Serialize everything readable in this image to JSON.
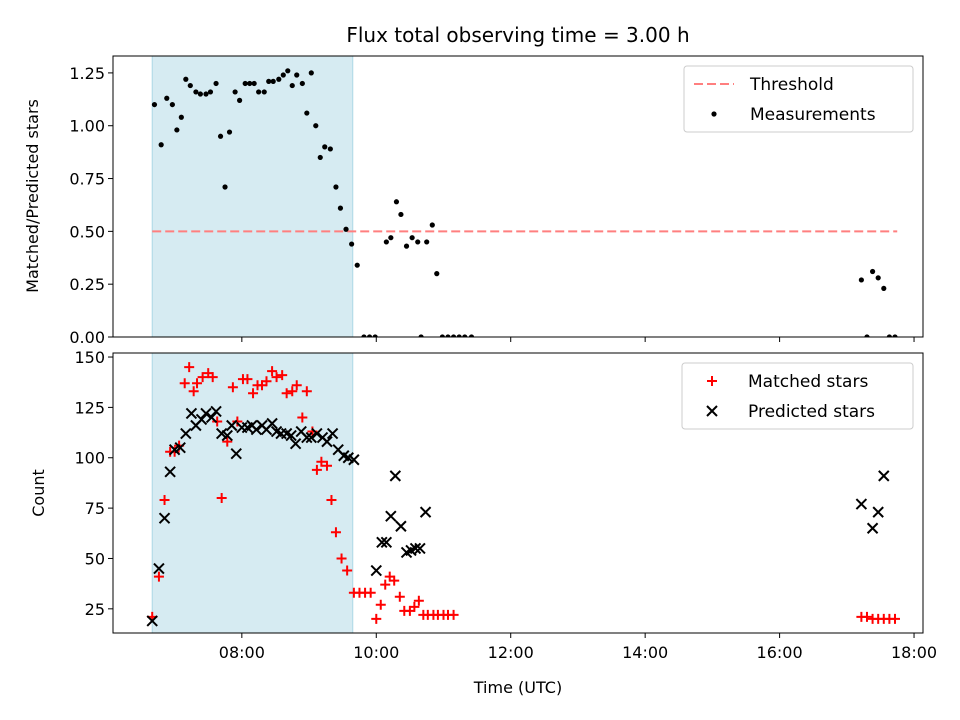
{
  "figure": {
    "title": "Flux total observing time = 3.00 h",
    "xlabel": "Time (UTC)"
  },
  "chart_data": [
    {
      "type": "scatter",
      "name": "ratio-panel",
      "ylabel": "Matched/Predicted stars",
      "xlim": [
        "06:05",
        "18:08"
      ],
      "ylim": [
        0,
        1.33
      ],
      "yticks": [
        "0.00",
        "0.25",
        "0.50",
        "0.75",
        "1.00",
        "1.25"
      ],
      "xtick_values": [
        "08:00",
        "10:00",
        "12:00",
        "14:00",
        "16:00",
        "18:00"
      ],
      "shaded_span": [
        "06:40",
        "09:39"
      ],
      "shade_color": "#add8e6",
      "threshold": {
        "label": "Threshold",
        "y": 0.5,
        "x": [
          "06:40",
          "17:45"
        ],
        "color": "#ff7f7f"
      },
      "series": [
        {
          "name": "Measurements",
          "color": "#000000",
          "marker": "dot",
          "points": [
            [
              "06:42",
              1.1
            ],
            [
              "06:48",
              0.91
            ],
            [
              "06:53",
              1.13
            ],
            [
              "06:58",
              1.1
            ],
            [
              "07:02",
              0.98
            ],
            [
              "07:06",
              1.04
            ],
            [
              "07:10",
              1.22
            ],
            [
              "07:14",
              1.19
            ],
            [
              "07:19",
              1.16
            ],
            [
              "07:23",
              1.15
            ],
            [
              "07:28",
              1.15
            ],
            [
              "07:32",
              1.16
            ],
            [
              "07:37",
              1.2
            ],
            [
              "07:41",
              0.95
            ],
            [
              "07:45",
              0.71
            ],
            [
              "07:49",
              0.97
            ],
            [
              "07:54",
              1.16
            ],
            [
              "07:58",
              1.12
            ],
            [
              "08:03",
              1.2
            ],
            [
              "08:07",
              1.2
            ],
            [
              "08:11",
              1.2
            ],
            [
              "08:15",
              1.16
            ],
            [
              "08:20",
              1.16
            ],
            [
              "08:24",
              1.21
            ],
            [
              "08:28",
              1.21
            ],
            [
              "08:33",
              1.22
            ],
            [
              "08:37",
              1.24
            ],
            [
              "08:41",
              1.26
            ],
            [
              "08:45",
              1.19
            ],
            [
              "08:49",
              1.24
            ],
            [
              "08:54",
              1.2
            ],
            [
              "08:58",
              1.06
            ],
            [
              "09:02",
              1.25
            ],
            [
              "09:06",
              1.0
            ],
            [
              "09:10",
              0.85
            ],
            [
              "09:14",
              0.9
            ],
            [
              "09:19",
              0.89
            ],
            [
              "09:24",
              0.71
            ],
            [
              "09:28",
              0.61
            ],
            [
              "09:33",
              0.51
            ],
            [
              "09:38",
              0.44
            ],
            [
              "09:43",
              0.34
            ],
            [
              "09:49",
              0.0
            ],
            [
              "09:54",
              0.0
            ],
            [
              "09:59",
              0.0
            ],
            [
              "10:09",
              0.45
            ],
            [
              "10:13",
              0.47
            ],
            [
              "10:18",
              0.64
            ],
            [
              "10:22",
              0.58
            ],
            [
              "10:27",
              0.43
            ],
            [
              "10:32",
              0.47
            ],
            [
              "10:37",
              0.45
            ],
            [
              "10:40",
              0.0
            ],
            [
              "10:45",
              0.45
            ],
            [
              "10:50",
              0.53
            ],
            [
              "10:54",
              0.3
            ],
            [
              "10:59",
              0.0
            ],
            [
              "11:04",
              0.0
            ],
            [
              "11:09",
              0.0
            ],
            [
              "11:14",
              0.0
            ],
            [
              "11:19",
              0.0
            ],
            [
              "11:25",
              0.0
            ],
            [
              "17:13",
              0.27
            ],
            [
              "17:18",
              0.0
            ],
            [
              "17:23",
              0.31
            ],
            [
              "17:28",
              0.28
            ],
            [
              "17:33",
              0.23
            ],
            [
              "17:38",
              0.0
            ],
            [
              "17:43",
              0.0
            ]
          ]
        }
      ],
      "legend": {
        "position": "top-right",
        "entries": [
          "Threshold",
          "Measurements"
        ]
      }
    },
    {
      "type": "scatter",
      "name": "count-panel",
      "ylabel": "Count",
      "xlim": [
        "06:05",
        "18:08"
      ],
      "ylim": [
        13,
        152
      ],
      "yticks": [
        "25",
        "50",
        "75",
        "100",
        "125",
        "150"
      ],
      "xticks": [
        "08:00",
        "10:00",
        "12:00",
        "14:00",
        "16:00",
        "18:00"
      ],
      "shaded_span": [
        "06:40",
        "09:39"
      ],
      "shade_color": "#add8e6",
      "series": [
        {
          "name": "Matched stars",
          "color": "#ff0000",
          "marker": "plus",
          "points": [
            [
              "06:40",
              21
            ],
            [
              "06:46",
              41
            ],
            [
              "06:51",
              79
            ],
            [
              "06:56",
              103
            ],
            [
              "07:00",
              103
            ],
            [
              "07:04",
              106
            ],
            [
              "07:09",
              137
            ],
            [
              "07:13",
              145
            ],
            [
              "07:17",
              133
            ],
            [
              "07:20",
              137
            ],
            [
              "07:25",
              140
            ],
            [
              "07:30",
              142
            ],
            [
              "07:34",
              140
            ],
            [
              "07:38",
              118
            ],
            [
              "07:42",
              80
            ],
            [
              "07:47",
              108
            ],
            [
              "07:52",
              135
            ],
            [
              "07:56",
              118
            ],
            [
              "08:01",
              139
            ],
            [
              "08:05",
              139
            ],
            [
              "08:10",
              132
            ],
            [
              "08:14",
              136
            ],
            [
              "08:18",
              136
            ],
            [
              "08:22",
              138
            ],
            [
              "08:27",
              143
            ],
            [
              "08:31",
              140
            ],
            [
              "08:36",
              141
            ],
            [
              "08:40",
              132
            ],
            [
              "08:45",
              133
            ],
            [
              "08:49",
              136
            ],
            [
              "08:54",
              120
            ],
            [
              "08:58",
              133
            ],
            [
              "09:03",
              113
            ],
            [
              "09:07",
              94
            ],
            [
              "09:11",
              98
            ],
            [
              "09:16",
              96
            ],
            [
              "09:20",
              79
            ],
            [
              "09:24",
              63
            ],
            [
              "09:29",
              50
            ],
            [
              "09:34",
              44
            ],
            [
              "09:40",
              33
            ],
            [
              "09:45",
              33
            ],
            [
              "09:50",
              33
            ],
            [
              "09:55",
              33
            ],
            [
              "10:00",
              20
            ],
            [
              "10:04",
              27
            ],
            [
              "10:08",
              37
            ],
            [
              "10:12",
              41
            ],
            [
              "10:16",
              39
            ],
            [
              "10:21",
              31
            ],
            [
              "10:25",
              24
            ],
            [
              "10:30",
              24
            ],
            [
              "10:34",
              26
            ],
            [
              "10:38",
              29
            ],
            [
              "10:42",
              22
            ],
            [
              "10:46",
              22
            ],
            [
              "10:51",
              22
            ],
            [
              "10:55",
              22
            ],
            [
              "11:00",
              22
            ],
            [
              "11:04",
              22
            ],
            [
              "11:09",
              22
            ],
            [
              "17:13",
              21
            ],
            [
              "17:18",
              21
            ],
            [
              "17:23",
              20
            ],
            [
              "17:28",
              20
            ],
            [
              "17:33",
              20
            ],
            [
              "17:38",
              20
            ],
            [
              "17:43",
              20
            ]
          ]
        },
        {
          "name": "Predicted stars",
          "color": "#000000",
          "marker": "x",
          "points": [
            [
              "06:40",
              19
            ],
            [
              "06:46",
              45
            ],
            [
              "06:51",
              70
            ],
            [
              "06:56",
              93
            ],
            [
              "07:00",
              104
            ],
            [
              "07:05",
              105
            ],
            [
              "07:10",
              112
            ],
            [
              "07:15",
              122
            ],
            [
              "07:19",
              116
            ],
            [
              "07:24",
              119
            ],
            [
              "07:28",
              122
            ],
            [
              "07:33",
              120
            ],
            [
              "07:37",
              123
            ],
            [
              "07:42",
              112
            ],
            [
              "07:47",
              111
            ],
            [
              "07:51",
              116
            ],
            [
              "07:55",
              102
            ],
            [
              "08:00",
              115
            ],
            [
              "08:05",
              115
            ],
            [
              "08:09",
              116
            ],
            [
              "08:13",
              114
            ],
            [
              "08:18",
              116
            ],
            [
              "08:22",
              114
            ],
            [
              "08:27",
              117
            ],
            [
              "08:31",
              113
            ],
            [
              "08:35",
              112
            ],
            [
              "08:40",
              112
            ],
            [
              "08:44",
              111
            ],
            [
              "08:48",
              107
            ],
            [
              "08:53",
              113
            ],
            [
              "08:58",
              110
            ],
            [
              "09:02",
              110
            ],
            [
              "09:07",
              112
            ],
            [
              "09:12",
              110
            ],
            [
              "09:16",
              108
            ],
            [
              "09:21",
              112
            ],
            [
              "09:26",
              104
            ],
            [
              "09:31",
              101
            ],
            [
              "09:35",
              100
            ],
            [
              "09:40",
              99
            ],
            [
              "10:00",
              44
            ],
            [
              "10:05",
              58
            ],
            [
              "10:09",
              58
            ],
            [
              "10:13",
              71
            ],
            [
              "10:17",
              91
            ],
            [
              "10:22",
              66
            ],
            [
              "10:27",
              53
            ],
            [
              "10:31",
              54
            ],
            [
              "10:35",
              55
            ],
            [
              "10:39",
              55
            ],
            [
              "10:44",
              73
            ],
            [
              "17:13",
              77
            ],
            [
              "17:23",
              65
            ],
            [
              "17:28",
              73
            ],
            [
              "17:33",
              91
            ]
          ]
        }
      ],
      "legend": {
        "position": "top-right",
        "entries": [
          "Matched stars",
          "Predicted stars"
        ]
      }
    }
  ]
}
